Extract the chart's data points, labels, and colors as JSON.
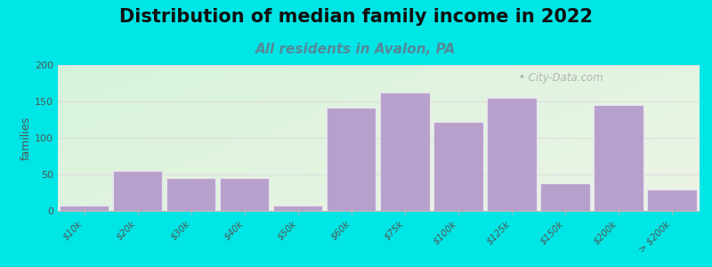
{
  "title": "Distribution of median family income in 2022",
  "subtitle": "All residents in Avalon, PA",
  "ylabel": "families",
  "categories": [
    "$10k",
    "$20k",
    "$30k",
    "$40k",
    "$50k",
    "$60k",
    "$75k",
    "$100k",
    "$125k",
    "$150k",
    "$200k",
    "> $200k"
  ],
  "values": [
    8,
    55,
    45,
    45,
    8,
    142,
    162,
    122,
    155,
    38,
    145,
    30
  ],
  "bar_color": "#b8a0cc",
  "bar_edgecolor": "#e8e0f0",
  "background_outer": "#00e5e5",
  "ylim": [
    0,
    200
  ],
  "yticks": [
    0,
    50,
    100,
    150,
    200
  ],
  "title_fontsize": 15,
  "subtitle_fontsize": 11,
  "subtitle_color": "#558899",
  "ylabel_fontsize": 9,
  "watermark": "• City-Data.com",
  "grid_color": "#dddddd",
  "spine_color": "#bbbbbb"
}
